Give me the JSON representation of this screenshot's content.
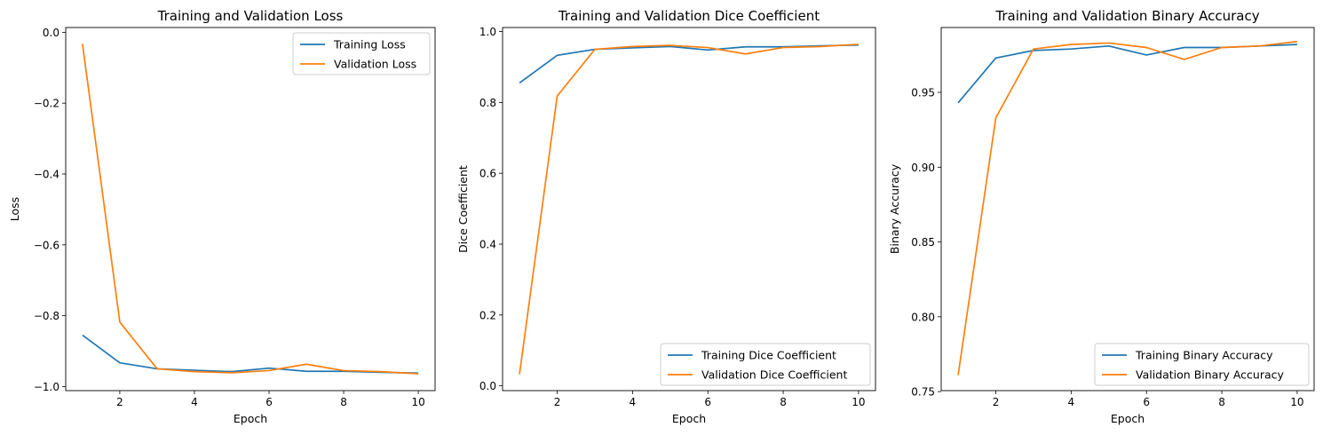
{
  "chart_data": [
    {
      "type": "line",
      "title": "Training and Validation Loss",
      "xlabel": "Epoch",
      "ylabel": "Loss",
      "x": [
        1,
        2,
        3,
        4,
        5,
        6,
        7,
        8,
        9,
        10
      ],
      "xlim": [
        0.55,
        10.45
      ],
      "ylim": [
        -1.0115,
        0.0135
      ],
      "xticks": [
        2,
        4,
        6,
        8,
        10
      ],
      "xtick_labels": [
        "2",
        "4",
        "6",
        "8",
        "10"
      ],
      "yticks": [
        0.0,
        -0.2,
        -0.4,
        -0.6,
        -0.8,
        -1.0
      ],
      "ytick_labels": [
        "0.0",
        "−0.2",
        "−0.4",
        "−0.6",
        "−0.8",
        "−1.0"
      ],
      "legend_loc": "upper right",
      "grid": false,
      "series": [
        {
          "name": "Training Loss",
          "color": "#1f77b4",
          "values": [
            -0.855,
            -0.933,
            -0.95,
            -0.954,
            -0.958,
            -0.948,
            -0.957,
            -0.957,
            -0.96,
            -0.962
          ]
        },
        {
          "name": "Validation Loss",
          "color": "#ff7f0e",
          "values": [
            -0.033,
            -0.818,
            -0.95,
            -0.958,
            -0.961,
            -0.955,
            -0.937,
            -0.955,
            -0.958,
            -0.964
          ]
        }
      ]
    },
    {
      "type": "line",
      "title": "Training and Validation Dice Coefficient",
      "xlabel": "Epoch",
      "ylabel": "Dice Coefficient",
      "x": [
        1,
        2,
        3,
        4,
        5,
        6,
        7,
        8,
        9,
        10
      ],
      "xlim": [
        0.55,
        10.45
      ],
      "ylim": [
        -0.0135,
        1.0115
      ],
      "xticks": [
        2,
        4,
        6,
        8,
        10
      ],
      "xtick_labels": [
        "2",
        "4",
        "6",
        "8",
        "10"
      ],
      "yticks": [
        0.0,
        0.2,
        0.4,
        0.6,
        0.8,
        1.0
      ],
      "ytick_labels": [
        "0.0",
        "0.2",
        "0.4",
        "0.6",
        "0.8",
        "1.0"
      ],
      "legend_loc": "lower right",
      "grid": false,
      "series": [
        {
          "name": "Training Dice Coefficient",
          "color": "#1f77b4",
          "values": [
            0.855,
            0.933,
            0.95,
            0.954,
            0.958,
            0.948,
            0.957,
            0.957,
            0.96,
            0.962
          ]
        },
        {
          "name": "Validation Dice Coefficient",
          "color": "#ff7f0e",
          "values": [
            0.033,
            0.818,
            0.95,
            0.958,
            0.961,
            0.955,
            0.937,
            0.955,
            0.958,
            0.964
          ]
        }
      ]
    },
    {
      "type": "line",
      "title": "Training and Validation Binary Accuracy",
      "xlabel": "Epoch",
      "ylabel": "Binary Accuracy",
      "x": [
        1,
        2,
        3,
        4,
        5,
        6,
        7,
        8,
        9,
        10
      ],
      "xlim": [
        0.55,
        10.45
      ],
      "ylim": [
        0.75065,
        0.99335
      ],
      "xticks": [
        2,
        4,
        6,
        8,
        10
      ],
      "xtick_labels": [
        "2",
        "4",
        "6",
        "8",
        "10"
      ],
      "yticks": [
        0.75,
        0.8,
        0.85,
        0.9,
        0.95
      ],
      "ytick_labels": [
        "0.75",
        "0.80",
        "0.85",
        "0.90",
        "0.95"
      ],
      "legend_loc": "lower right",
      "grid": false,
      "series": [
        {
          "name": "Training Binary Accuracy",
          "color": "#1f77b4",
          "values": [
            0.943,
            0.973,
            0.978,
            0.979,
            0.981,
            0.975,
            0.98,
            0.98,
            0.981,
            0.982
          ]
        },
        {
          "name": "Validation Binary Accuracy",
          "color": "#ff7f0e",
          "values": [
            0.761,
            0.933,
            0.979,
            0.982,
            0.983,
            0.98,
            0.972,
            0.98,
            0.981,
            0.984
          ]
        }
      ]
    }
  ]
}
